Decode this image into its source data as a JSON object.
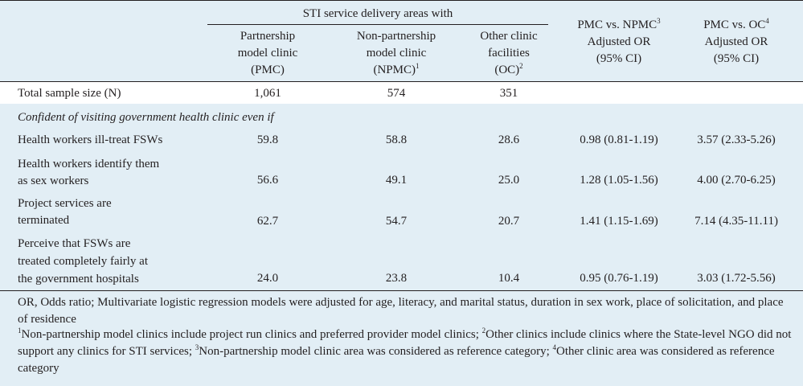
{
  "header": {
    "group_label": "STI service delivery areas with",
    "col_pmc": [
      "Partnership",
      "model clinic",
      "(PMC)"
    ],
    "col_npmc": [
      "Non-partnership",
      "model clinic",
      "(NPMC)"
    ],
    "col_npmc_sup": "1",
    "col_oc": [
      "Other clinic",
      "facilities",
      "(OC)"
    ],
    "col_oc_sup": "2",
    "col_or1": [
      "PMC vs. NPMC",
      "Adjusted OR",
      "(95% CI)"
    ],
    "col_or1_sup": "3",
    "col_or2": [
      "PMC vs. OC",
      "Adjusted OR",
      "(95% CI)"
    ],
    "col_or2_sup": "4"
  },
  "sample_row": {
    "label": "Total sample size (N)",
    "pmc": "1,061",
    "npmc": "574",
    "oc": "351"
  },
  "section_label": "Confident of visiting government health clinic even if",
  "rows": [
    {
      "label": [
        "Health workers ill-treat FSWs"
      ],
      "pmc": "59.8",
      "npmc": "58.8",
      "oc": "28.6",
      "or1": "0.98 (0.81-1.19)",
      "or2": "3.57 (2.33-5.26)"
    },
    {
      "label": [
        "Health workers identify them",
        "as sex workers"
      ],
      "pmc": "56.6",
      "npmc": "49.1",
      "oc": "25.0",
      "or1": "1.28 (1.05-1.56)",
      "or2": "4.00 (2.70-6.25)"
    },
    {
      "label": [
        "Project services are",
        "terminated"
      ],
      "pmc": "62.7",
      "npmc": "54.7",
      "oc": "20.7",
      "or1": "1.41 (1.15-1.69)",
      "or2": "7.14 (4.35-11.11)"
    },
    {
      "label": [
        "Perceive that FSWs are",
        "treated completely fairly at",
        "the government hospitals"
      ],
      "pmc": "24.0",
      "npmc": "23.8",
      "oc": "10.4",
      "or1": "0.95 (0.76-1.19)",
      "or2": "3.03 (1.72-5.56)"
    }
  ],
  "footnotes": {
    "abbrev": "OR, Odds ratio; Multivariate logistic regression models were adjusted for age, literacy, and marital status, duration in sex work, place of solicitation, and place of residence",
    "n1_sup": "1",
    "n1": "Non-partnership model clinics include project run clinics and preferred provider model clinics; ",
    "n2_sup": "2",
    "n2": "Other clinics include clinics where the State-level NGO did not support any clinics for STI services; ",
    "n3_sup": "3",
    "n3": "Non-partnership model clinic area was considered as reference category; ",
    "n4_sup": "4",
    "n4": "Other clinic area was considered as reference category"
  }
}
